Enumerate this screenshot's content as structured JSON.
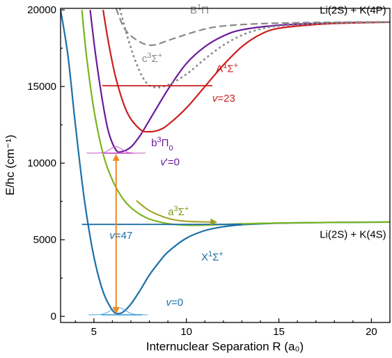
{
  "chart_data": {
    "type": "line",
    "title": "",
    "xlabel": "Internuclear Separation R (a₀)",
    "ylabel": "E/hc (cm⁻¹)",
    "xlim": [
      3.2,
      21
    ],
    "ylim": [
      -400,
      20100
    ],
    "x_ticks": [
      5,
      10,
      15,
      20
    ],
    "y_ticks": [
      0,
      5000,
      10000,
      15000,
      20000
    ],
    "x_tick_labels": [
      "5",
      "10",
      "15",
      "20"
    ],
    "y_tick_labels": [
      "0",
      "5000",
      "10000",
      "15000",
      "20000"
    ],
    "grid": false,
    "legend": "none",
    "series": [
      {
        "key": "X1Sigma",
        "color": "#1a6faa",
        "style": "solid",
        "points": [
          [
            3.2,
            20000
          ],
          [
            3.6,
            17000
          ],
          [
            4,
            12500
          ],
          [
            4.5,
            7500
          ],
          [
            5,
            3900
          ],
          [
            5.5,
            1600
          ],
          [
            6,
            400
          ],
          [
            6.3,
            180
          ],
          [
            6.6,
            300
          ],
          [
            7,
            800
          ],
          [
            7.5,
            1700
          ],
          [
            8,
            2700
          ],
          [
            8.5,
            3500
          ],
          [
            9,
            4200
          ],
          [
            10,
            5100
          ],
          [
            11,
            5600
          ],
          [
            12,
            5850
          ],
          [
            13,
            5980
          ],
          [
            15,
            6080
          ],
          [
            18,
            6130
          ],
          [
            21,
            6150
          ]
        ]
      },
      {
        "key": "a3Sigma",
        "color": "#7ab51d",
        "style": "solid",
        "points": [
          [
            4.35,
            20000
          ],
          [
            4.6,
            17000
          ],
          [
            5,
            13500
          ],
          [
            5.5,
            10600
          ],
          [
            6,
            8900
          ],
          [
            6.5,
            7800
          ],
          [
            7,
            7100
          ],
          [
            7.5,
            6650
          ],
          [
            8,
            6350
          ],
          [
            9,
            6050
          ],
          [
            10,
            5950
          ],
          [
            11,
            5960
          ],
          [
            13,
            6040
          ],
          [
            16,
            6110
          ],
          [
            21,
            6150
          ]
        ]
      },
      {
        "key": "b3Pi",
        "color": "#6a1a9a",
        "style": "solid",
        "points": [
          [
            4.8,
            20000
          ],
          [
            5.1,
            17000
          ],
          [
            5.5,
            13800
          ],
          [
            5.8,
            12000
          ],
          [
            6.2,
            10850
          ],
          [
            6.5,
            10750
          ],
          [
            7,
            11050
          ],
          [
            7.5,
            11800
          ],
          [
            8,
            12800
          ],
          [
            9,
            14800
          ],
          [
            10,
            16500
          ],
          [
            11,
            17600
          ],
          [
            12,
            18300
          ],
          [
            13,
            18700
          ],
          [
            15,
            19000
          ],
          [
            18,
            19150
          ],
          [
            21,
            19200
          ]
        ]
      },
      {
        "key": "A1Sigma",
        "color": "#cc1d1d",
        "style": "solid",
        "points": [
          [
            5.5,
            20000
          ],
          [
            5.8,
            17800
          ],
          [
            6.2,
            15500
          ],
          [
            6.8,
            13300
          ],
          [
            7.5,
            12200
          ],
          [
            8,
            12050
          ],
          [
            8.5,
            12150
          ],
          [
            9,
            12500
          ],
          [
            10,
            13600
          ],
          [
            11,
            15000
          ],
          [
            12,
            16400
          ],
          [
            13,
            17600
          ],
          [
            14,
            18400
          ],
          [
            15,
            18800
          ],
          [
            17,
            19050
          ],
          [
            19,
            19150
          ],
          [
            21,
            19200
          ]
        ]
      },
      {
        "key": "B1Pi",
        "color": "#888888",
        "style": "dashed",
        "points": [
          [
            6.2,
            20100
          ],
          [
            6.7,
            18700
          ],
          [
            7.5,
            17900
          ],
          [
            8.2,
            17700
          ],
          [
            9,
            18000
          ],
          [
            10,
            18400
          ],
          [
            11,
            18750
          ],
          [
            12,
            18950
          ],
          [
            14,
            19100
          ],
          [
            17,
            19180
          ],
          [
            21,
            19220
          ]
        ]
      },
      {
        "key": "c3Sigma",
        "color": "#888888",
        "style": "dotted",
        "points": [
          [
            6.4,
            20100
          ],
          [
            6.8,
            18300
          ],
          [
            7.3,
            16500
          ],
          [
            7.8,
            15300
          ],
          [
            8.3,
            14950
          ],
          [
            9,
            15100
          ],
          [
            10,
            15800
          ],
          [
            11,
            16800
          ],
          [
            12,
            17700
          ],
          [
            13,
            18350
          ],
          [
            14,
            18750
          ],
          [
            15,
            18950
          ],
          [
            17,
            19100
          ],
          [
            21,
            19200
          ]
        ]
      }
    ],
    "vibrational_levels": [
      {
        "label": "v=47",
        "color": "#1a6faa",
        "x_range": [
          4.35,
          13.0
        ],
        "energy": 6000
      },
      {
        "label": "v=23",
        "color": "#cc1d1d",
        "x_range": [
          5.45,
          11.4
        ],
        "energy": 15050
      },
      {
        "label": "v'=0",
        "color": "#cc55cc",
        "x_range": [
          5.55,
          7.1
        ],
        "energy": 10650
      },
      {
        "label": "v=0",
        "color": "#4aa3dd",
        "x_range": [
          5.4,
          7.6
        ],
        "energy": 100
      }
    ],
    "transition_arrow": {
      "color": "#f08a1c",
      "x": 6.2,
      "y_low": 100,
      "y_high": 10650
    },
    "a3_arrow": {
      "color": "#a0a020",
      "points": [
        [
          7.3,
          7550
        ],
        [
          8,
          6900
        ],
        [
          9,
          6400
        ],
        [
          10,
          6200
        ],
        [
          11.6,
          6150
        ]
      ]
    },
    "annotations": [
      {
        "key": "B1Pi",
        "html": "B<tspan baseline-shift='super' font-size='11'>1</tspan>Π",
        "color": "#888888",
        "x": 10.2,
        "y": 19750
      },
      {
        "key": "c3Sigma",
        "html": "c<tspan baseline-shift='super' font-size='11'>3</tspan>Σ<tspan baseline-shift='super' font-size='11'>+</tspan>",
        "color": "#888888",
        "x": 7.6,
        "y": 16600
      },
      {
        "key": "A1Sigma",
        "html": "A<tspan baseline-shift='super' font-size='11'>1</tspan>Σ<tspan baseline-shift='super' font-size='11'>+</tspan>",
        "color": "#cc1d1d",
        "x": 11.6,
        "y": 15950
      },
      {
        "key": "v23",
        "text": "v=23",
        "color": "#cc1d1d",
        "x": 11.4,
        "y": 14000,
        "italic_first": true
      },
      {
        "key": "b3Pi",
        "html": "b<tspan baseline-shift='super' font-size='11'>3</tspan>Π<tspan baseline-shift='sub' font-size='11'>0</tspan>",
        "color": "#6a1a9a",
        "x": 8.1,
        "y": 11100
      },
      {
        "key": "vprime0",
        "text": "v'=0",
        "color": "#6a1a9a",
        "x": 8.6,
        "y": 9850,
        "italic_first": true
      },
      {
        "key": "a3Sigma",
        "html": "a<tspan baseline-shift='super' font-size='11'>3</tspan>Σ<tspan baseline-shift='super' font-size='11'>+</tspan>",
        "color": "#7a9a10",
        "x": 9.0,
        "y": 6600
      },
      {
        "key": "v47",
        "text": "v=47",
        "color": "#1a6faa",
        "x": 5.85,
        "y": 5050,
        "italic_first": true
      },
      {
        "key": "X1Sigma",
        "html": "X<tspan baseline-shift='super' font-size='11'>1</tspan>Σ<tspan baseline-shift='super' font-size='11'>+</tspan>",
        "color": "#1a6faa",
        "x": 10.8,
        "y": 3650
      },
      {
        "key": "v0",
        "text": "v=0",
        "color": "#1a6faa",
        "x": 8.9,
        "y": 700,
        "italic_first": true
      },
      {
        "key": "asym_upper",
        "text": "Li(2S) + K(4P)",
        "color": "#000000",
        "x": 20.8,
        "y": 19750,
        "anchor": "end"
      },
      {
        "key": "asym_lower",
        "text": "Li(2S) + K(4S)",
        "color": "#000000",
        "x": 20.8,
        "y": 5120,
        "anchor": "end"
      }
    ]
  }
}
